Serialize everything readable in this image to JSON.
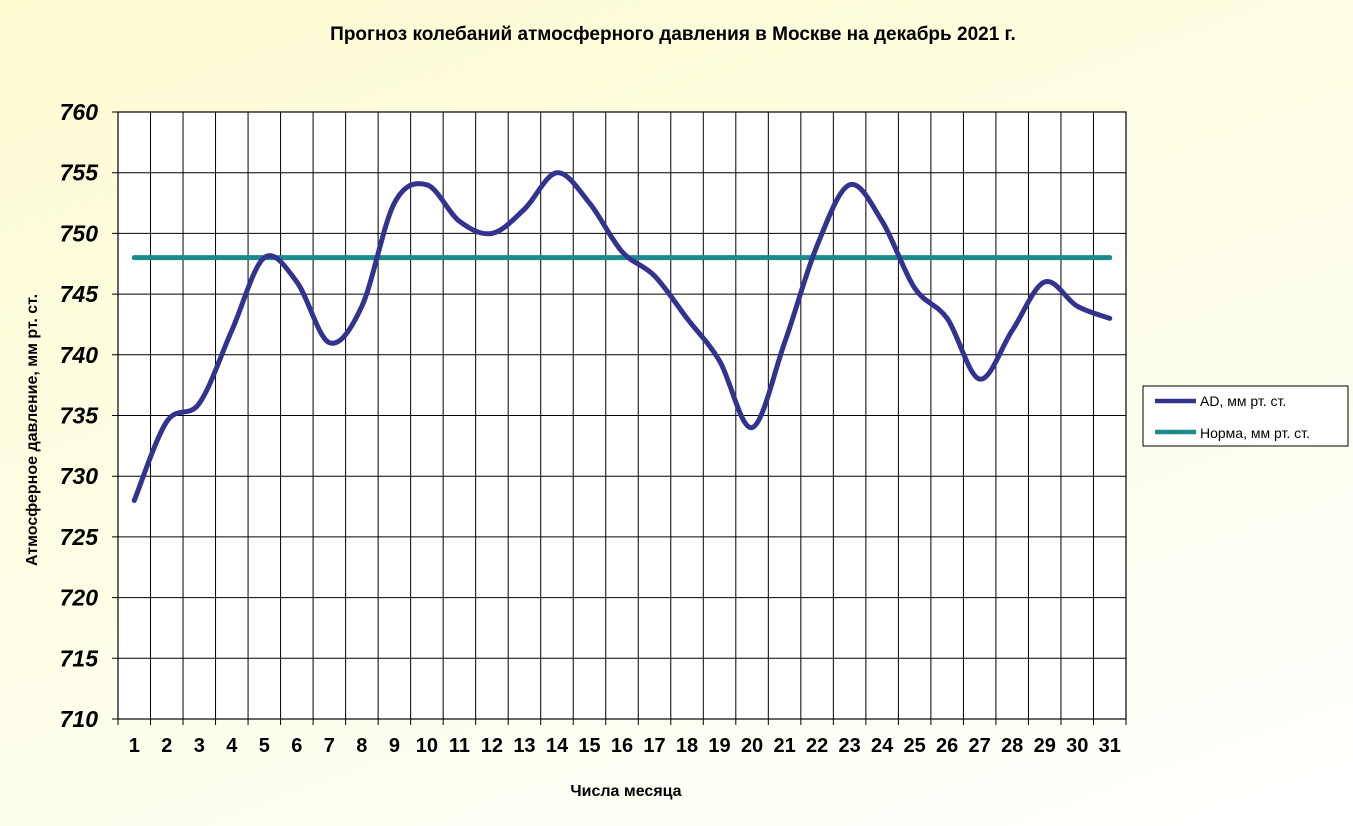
{
  "chart_data": {
    "type": "line",
    "title": "Прогноз колебаний атмосферного давления в Москве на декабрь 2021 г.",
    "xlabel": "Числа месяца",
    "ylabel": "Атмосферное давление, мм рт. ст.",
    "categories": [
      "1",
      "2",
      "3",
      "4",
      "5",
      "6",
      "7",
      "8",
      "9",
      "10",
      "11",
      "12",
      "13",
      "14",
      "15",
      "16",
      "17",
      "18",
      "19",
      "20",
      "21",
      "22",
      "23",
      "24",
      "25",
      "26",
      "27",
      "28",
      "29",
      "30",
      "31"
    ],
    "yticks": [
      "710",
      "715",
      "720",
      "725",
      "730",
      "735",
      "740",
      "745",
      "750",
      "755",
      "760"
    ],
    "ylim": [
      710,
      760
    ],
    "grid": true,
    "legend_position": "right",
    "series": [
      {
        "name": "АD, мм рт. ст.",
        "color": "#33338f",
        "values": [
          728,
          734.5,
          736,
          742,
          748,
          746,
          741,
          744,
          752.5,
          754,
          751,
          750,
          752,
          755,
          752.5,
          748.5,
          746.5,
          743,
          739.5,
          734,
          741,
          749,
          754,
          751,
          745.5,
          743,
          738,
          742,
          746,
          744,
          743
        ]
      },
      {
        "name": "Норма, мм рт. ст.",
        "color": "#1b8a8a",
        "values": [
          748,
          748,
          748,
          748,
          748,
          748,
          748,
          748,
          748,
          748,
          748,
          748,
          748,
          748,
          748,
          748,
          748,
          748,
          748,
          748,
          748,
          748,
          748,
          748,
          748,
          748,
          748,
          748,
          748,
          748,
          748
        ]
      }
    ]
  }
}
